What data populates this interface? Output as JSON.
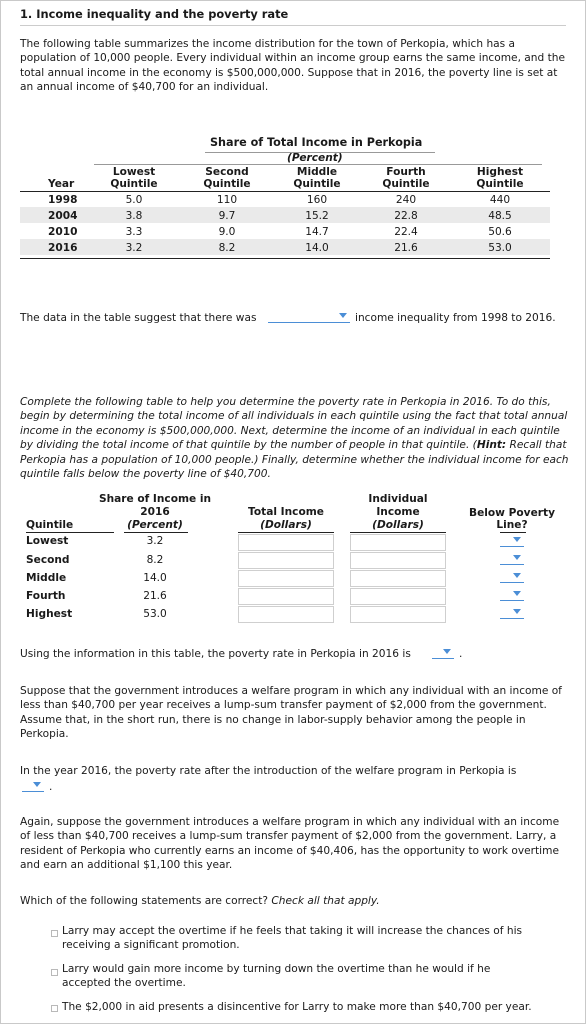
{
  "question": {
    "title": "1. Income inequality and the poverty rate",
    "intro": "The following table summarizes the income distribution for the town of Perkopia, which has a population of 10,000 people. Every individual within an income group earns the same income, and the total annual income in the economy is $500,000,000. Suppose that in 2016, the poverty line is set at an annual income of $40,700 for an individual."
  },
  "table1": {
    "title": "Share of Total Income in Perkopia",
    "subtitle": "(Percent)",
    "headers": [
      "Year",
      "Lowest Quintile",
      "Second Quintile",
      "Middle Quintile",
      "Fourth Quintile",
      "Highest Quintile"
    ],
    "rows": [
      [
        "1998",
        "5.0",
        "110",
        "160",
        "240",
        "440"
      ],
      [
        "2004",
        "3.8",
        "9.7",
        "15.2",
        "22.8",
        "48.5"
      ],
      [
        "2010",
        "3.3",
        "9.0",
        "14.7",
        "22.4",
        "50.6"
      ],
      [
        "2016",
        "3.2",
        "8.2",
        "14.0",
        "21.6",
        "53.0"
      ]
    ]
  },
  "inequality_q": {
    "before": "The data in the table suggest that there was",
    "after": "income inequality from 1998 to 2016."
  },
  "instructions": {
    "p1": "Complete the following table to help you determine the poverty rate in Perkopia in 2016. To do this, begin by determining the total income of all individuals in each quintile using the fact that total annual income in the economy is $500,000,000. Next, determine the income of an individual in each quintile by dividing the total income of that quintile by the number of people in that quintile. (",
    "hint_label": "Hint:",
    "p2": " Recall that Perkopia has a population of 10,000 people.) Finally, determine whether the individual income for each quintile falls below the poverty line of $40,700."
  },
  "table2": {
    "col_quintile": "Quintile",
    "col_share_l1": "Share of Income in",
    "col_share_l2": "2016",
    "col_share_l3": "(Percent)",
    "col_total_l1": "Total Income",
    "col_total_l2": "(Dollars)",
    "col_indiv_l1": "Individual",
    "col_indiv_l2": "Income",
    "col_indiv_l3": "(Dollars)",
    "col_below_l1": "Below Poverty",
    "col_below_l2": "Line?",
    "rows": [
      {
        "name": "Lowest",
        "share": "3.2"
      },
      {
        "name": "Second",
        "share": "8.2"
      },
      {
        "name": "Middle",
        "share": "14.0"
      },
      {
        "name": "Fourth",
        "share": "21.6"
      },
      {
        "name": "Highest",
        "share": "53.0"
      }
    ]
  },
  "poverty_rate_q": {
    "text": "Using the information in this table, the poverty rate in Perkopia in 2016 is",
    "end": "."
  },
  "welfare": {
    "p1": "Suppose that the government introduces a welfare program in which any individual with an income of less than $40,700 per year receives a lump-sum transfer payment of $2,000 from the government. Assume that, in the short run, there is no change in labor-supply behavior among the people in Perkopia.",
    "q": "In the year 2016, the poverty rate after the introduction of the welfare program in Perkopia is",
    "q_end": ".",
    "p2": "Again, suppose the government introduces a welfare program in which any individual with an income of less than $40,700 receives a lump-sum transfer payment of $2,000 from the government. Larry, a resident of Perkopia who currently earns an income of $40,406, has the opportunity to work overtime and earn an additional $1,100 this year."
  },
  "statements": {
    "prompt": "Which of the following statements are correct?",
    "prompt_italic": "Check all that apply.",
    "options": [
      "Larry may accept the overtime if he feels that taking it will increase the chances of his receiving a significant promotion.",
      "Larry would gain more income by turning down the overtime than he would if he accepted the overtime.",
      "The $2,000 in aid presents a disincentive for Larry to make more than $40,700 per year."
    ]
  }
}
